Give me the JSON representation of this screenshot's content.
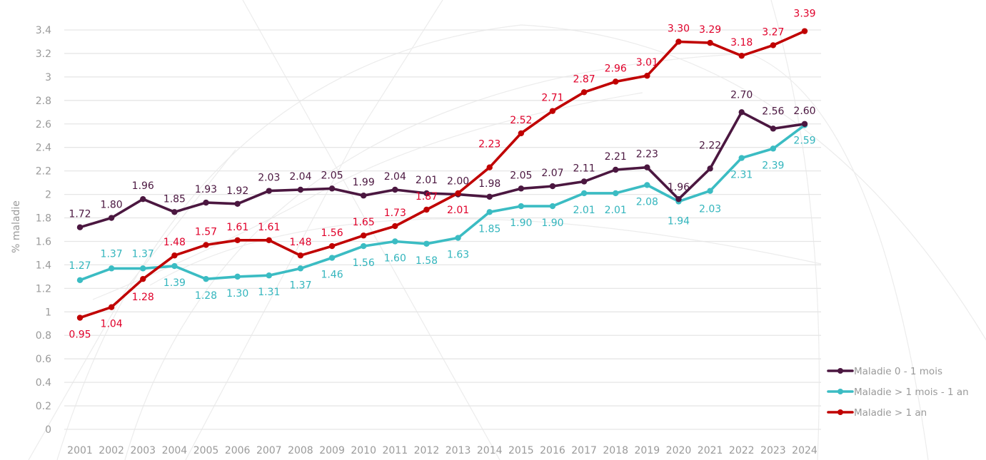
{
  "chart_data": {
    "type": "line",
    "title": "",
    "xlabel": "",
    "ylabel": "% maladie",
    "ylim": [
      0,
      3.4
    ],
    "yticks": [
      "0",
      "0.2",
      "0.4",
      "0.6",
      "0.8",
      "1",
      "1.2",
      "1.4",
      "1.6",
      "1.8",
      "2",
      "2.2",
      "2.4",
      "2.6",
      "2.8",
      "3",
      "3.2",
      "3.4"
    ],
    "ytick_values": [
      0,
      0.2,
      0.4,
      0.6,
      0.8,
      1,
      1.2,
      1.4,
      1.6,
      1.8,
      2,
      2.2,
      2.4,
      2.6,
      2.8,
      3,
      3.2,
      3.4
    ],
    "grid": true,
    "legend_position": "right-bottom",
    "categories": [
      "2001",
      "2002",
      "2003",
      "2004",
      "2005",
      "2006",
      "2007",
      "2008",
      "2009",
      "2010",
      "2011",
      "2012",
      "2013",
      "2014",
      "2015",
      "2016",
      "2017",
      "2018",
      "2019",
      "2020",
      "2021",
      "2022",
      "2023",
      "2024"
    ],
    "series": [
      {
        "name": "Maladie 0 - 1 mois",
        "color": "#4b1740",
        "label_color": "#4b1740",
        "values": [
          1.72,
          1.8,
          1.96,
          1.85,
          1.93,
          1.92,
          2.03,
          2.04,
          2.05,
          1.99,
          2.04,
          2.01,
          2.0,
          1.98,
          2.05,
          2.07,
          2.11,
          2.21,
          2.23,
          1.96,
          2.22,
          2.7,
          2.56,
          2.6
        ],
        "labels": [
          "1.72",
          "1.80",
          "1.96",
          "1.85",
          "1.93",
          "1.92",
          "2.03",
          "2.04",
          "2.05",
          "1.99",
          "2.04",
          "2.01",
          "2.00",
          "1.98",
          "2.05",
          "2.07",
          "2.11",
          "2.21",
          "2.23",
          "1.96",
          "2.22",
          "2.70",
          "2.56",
          "2.60"
        ]
      },
      {
        "name": "Maladie > 1 mois - 1 an",
        "color": "#3bbcc3",
        "label_color": "#33b5bd",
        "values": [
          1.27,
          1.37,
          1.37,
          1.39,
          1.28,
          1.3,
          1.31,
          1.37,
          1.46,
          1.56,
          1.6,
          1.58,
          1.63,
          1.85,
          1.9,
          1.9,
          2.01,
          2.01,
          2.08,
          1.94,
          2.03,
          2.31,
          2.39,
          2.59
        ],
        "labels": [
          "1.27",
          "1.37",
          "1.37",
          "1.39",
          "1.28",
          "1.30",
          "1.31",
          "1.37",
          "1.46",
          "1.56",
          "1.60",
          "1.58",
          "1.63",
          "1.85",
          "1.90",
          "1.90",
          "2.01",
          "2.01",
          "2.08",
          "1.94",
          "2.03",
          "2.31",
          "2.39",
          "2.59"
        ]
      },
      {
        "name": "Maladie > 1 an",
        "color": "#c00000",
        "label_color": "#e0002a",
        "values": [
          0.95,
          1.04,
          1.28,
          1.48,
          1.57,
          1.61,
          1.61,
          1.48,
          1.56,
          1.65,
          1.73,
          1.87,
          2.01,
          2.23,
          2.52,
          2.71,
          2.87,
          2.96,
          3.01,
          3.3,
          3.29,
          3.18,
          3.27,
          3.39
        ],
        "labels": [
          "0.95",
          "1.04",
          "1.28",
          "1.48",
          "1.57",
          "1.61",
          "1.61",
          "1.48",
          "1.56",
          "1.65",
          "1.73",
          "1.87",
          "2.01",
          "2.23",
          "2.52",
          "2.71",
          "2.87",
          "2.96",
          "3.01",
          "3.30",
          "3.29",
          "3.18",
          "3.27",
          "3.39"
        ]
      }
    ]
  }
}
